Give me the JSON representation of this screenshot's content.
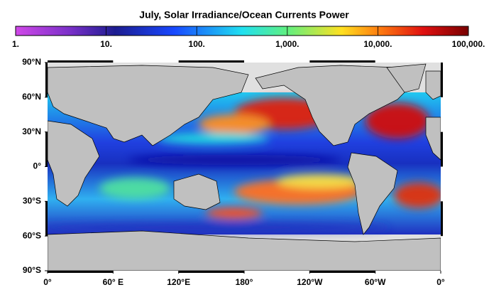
{
  "title": "July, Solar Irradiance/Ocean Currents Power",
  "colorbar": {
    "scale": "log",
    "lim": [
      1,
      100000
    ],
    "ticks": [
      {
        "value": 1,
        "label": "1."
      },
      {
        "value": 10,
        "label": "10."
      },
      {
        "value": 100,
        "label": "100."
      },
      {
        "value": 1000,
        "label": "1,000."
      },
      {
        "value": 10000,
        "label": "10,000."
      },
      {
        "value": 100000,
        "label": "100,000."
      }
    ]
  },
  "map": {
    "lonlim": [
      0,
      360
    ],
    "latlim": [
      -90,
      90
    ],
    "lat_ticks": [
      {
        "value": 90,
        "label": "90°N"
      },
      {
        "value": 60,
        "label": "60°N"
      },
      {
        "value": 30,
        "label": "30°N"
      },
      {
        "value": 0,
        "label": "0°"
      },
      {
        "value": -30,
        "label": "30°S"
      },
      {
        "value": -60,
        "label": "60°S"
      },
      {
        "value": -90,
        "label": "90°S"
      }
    ],
    "lon_ticks": [
      {
        "value": 0,
        "label": "0°"
      },
      {
        "value": 60,
        "label": "60° E"
      },
      {
        "value": 120,
        "label": "120°E"
      },
      {
        "value": 180,
        "label": "180°"
      },
      {
        "value": 240,
        "label": "120°W"
      },
      {
        "value": 300,
        "label": "60°W"
      },
      {
        "value": 360,
        "label": "0°"
      }
    ]
  }
}
